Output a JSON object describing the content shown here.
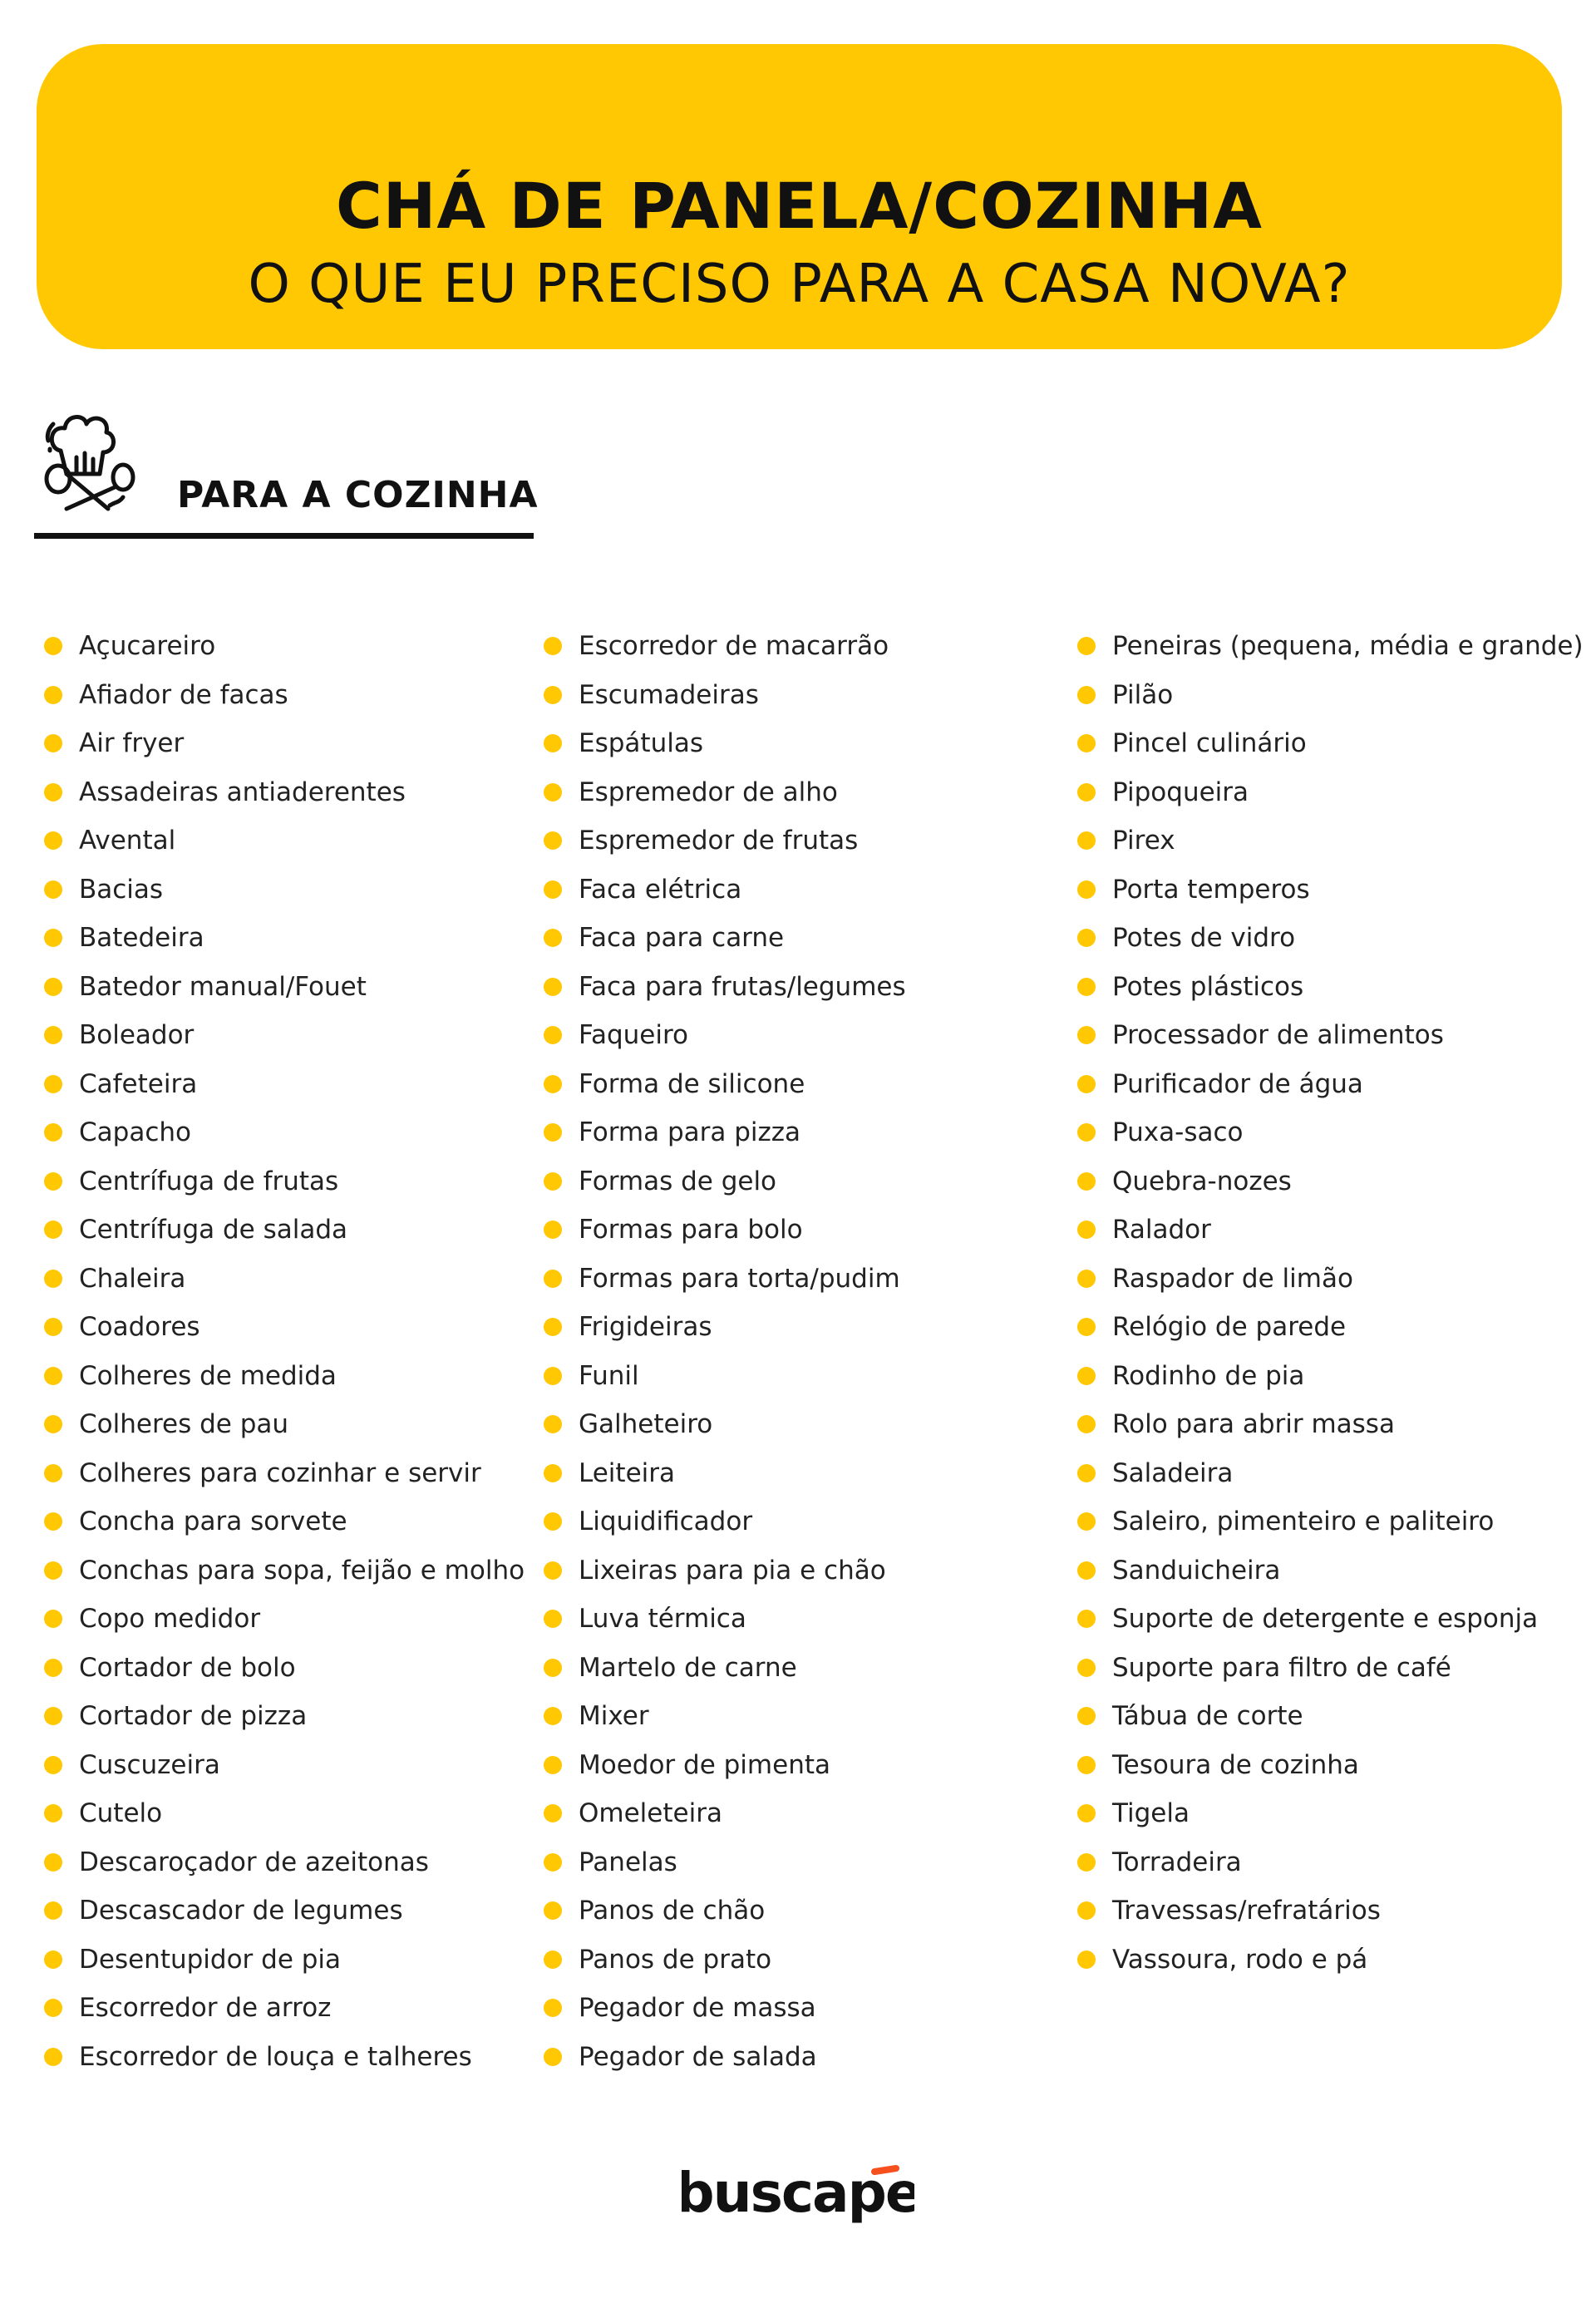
{
  "header": {
    "title": "CHÁ DE PANELA/COZINHA",
    "subtitle": "O QUE EU PRECISO PARA A CASA NOVA?"
  },
  "section": {
    "title": "PARA A COZINHA",
    "icon": "chef-hat-spoons-icon"
  },
  "colors": {
    "accent": "#FFC802",
    "text": "#111111",
    "logo_accent": "#F5501E"
  },
  "columns": [
    [
      "Açucareiro",
      "Afiador de facas",
      "Air fryer",
      "Assadeiras antiaderentes",
      "Avental",
      "Bacias",
      "Batedeira",
      "Batedor manual/Fouet",
      "Boleador",
      "Cafeteira",
      "Capacho",
      "Centrífuga de frutas",
      "Centrífuga de salada",
      "Chaleira",
      "Coadores",
      "Colheres de medida",
      "Colheres de pau",
      "Colheres para cozinhar e servir",
      "Concha para sorvete",
      "Conchas para sopa, feijão e molho",
      "Copo medidor",
      "Cortador de bolo",
      "Cortador de pizza",
      "Cuscuzeira",
      "Cutelo",
      "Descaroçador de azeitonas",
      "Descascador de legumes",
      "Desentupidor de pia",
      "Escorredor de arroz",
      "Escorredor de louça e talheres"
    ],
    [
      "Escorredor de macarrão",
      "Escumadeiras",
      "Espátulas",
      "Espremedor de alho",
      "Espremedor de frutas",
      "Faca elétrica",
      "Faca para carne",
      "Faca para frutas/legumes",
      "Faqueiro",
      "Forma de silicone",
      "Forma para pizza",
      "Formas de gelo",
      "Formas para bolo",
      "Formas para torta/pudim",
      "Frigideiras",
      "Funil",
      "Galheteiro",
      "Leiteira",
      "Liquidificador",
      "Lixeiras para pia e chão",
      "Luva térmica",
      "Martelo de carne",
      "Mixer",
      "Moedor de pimenta",
      "Omeleteira",
      "Panelas",
      "Panos de chão",
      "Panos de prato",
      "Pegador de massa",
      "Pegador de salada"
    ],
    [
      "Peneiras (pequena, média e grande)",
      "Pilão",
      "Pincel culinário",
      "Pipoqueira",
      "Pirex",
      "Porta temperos",
      "Potes de vidro",
      "Potes plásticos",
      "Processador de alimentos",
      "Purificador de água",
      "Puxa-saco",
      "Quebra-nozes",
      "Ralador",
      "Raspador de limão",
      "Relógio de parede",
      "Rodinho de pia",
      "Rolo para abrir massa",
      "Saladeira",
      "Saleiro, pimenteiro e paliteiro",
      "Sanduicheira",
      "Suporte de detergente e esponja",
      "Suporte para filtro de café",
      "Tábua de corte",
      "Tesoura de cozinha",
      "Tigela",
      "Torradeira",
      "Travessas/refratários",
      "Vassoura, rodo e pá"
    ]
  ],
  "footer": {
    "logo_text": "buscapé"
  }
}
